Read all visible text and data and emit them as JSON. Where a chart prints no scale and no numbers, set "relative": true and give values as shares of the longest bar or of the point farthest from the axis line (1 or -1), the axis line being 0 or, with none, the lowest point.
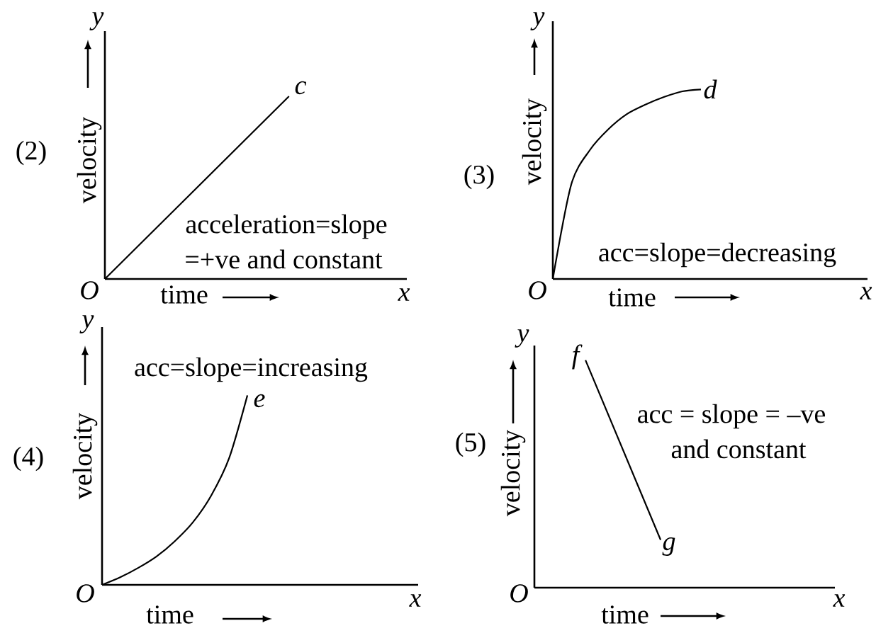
{
  "chart_data": [
    {
      "type": "line",
      "relative": true,
      "title": "(2)",
      "xlabel": "time",
      "ylabel": "velocity",
      "categories": [
        null,
        null
      ],
      "series": [
        {
          "color": "#000000",
          "values": [
            0,
            1
          ]
        }
      ],
      "annotations": [
        "O",
        "y",
        "x",
        "c",
        "acceleration=slope",
        "=+ve and constant"
      ]
    },
    {
      "type": "line",
      "relative": true,
      "title": "(3)",
      "xlabel": "time",
      "ylabel": "velocity",
      "categories": [
        null,
        null,
        null,
        null,
        null,
        null,
        null,
        null,
        null
      ],
      "series": [
        {
          "color": "#000000",
          "values": [
            0,
            0.5,
            0.68,
            0.79,
            0.87,
            0.92,
            0.96,
            0.99,
            1
          ]
        }
      ],
      "annotations": [
        "O",
        "y",
        "x",
        "d",
        "acc=slope=decreasing"
      ]
    },
    {
      "type": "line",
      "relative": true,
      "title": "(4)",
      "xlabel": "time",
      "ylabel": "velocity",
      "categories": [
        null,
        null,
        null,
        null,
        null,
        null,
        null,
        null,
        null
      ],
      "series": [
        {
          "color": "#000000",
          "values": [
            0,
            0.04,
            0.09,
            0.15,
            0.23,
            0.33,
            0.47,
            0.67,
            1
          ]
        }
      ],
      "annotations": [
        "O",
        "y",
        "x",
        "e",
        "acc=slope=increasing"
      ]
    },
    {
      "type": "line",
      "relative": true,
      "title": "(5)",
      "xlabel": "time",
      "ylabel": "velocity",
      "categories": [
        null,
        null
      ],
      "series": [
        {
          "color": "#000000",
          "values": [
            1,
            0.21
          ]
        }
      ],
      "annotations": [
        "O",
        "y",
        "x",
        "f",
        "g",
        "acc = slope = –ve",
        "and constant"
      ]
    }
  ]
}
